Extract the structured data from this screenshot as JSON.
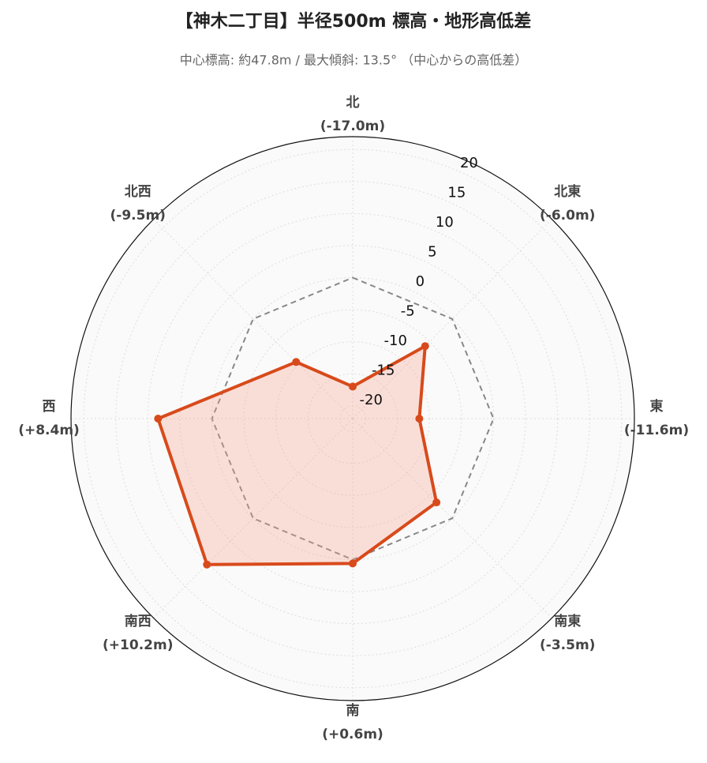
{
  "chart_data": {
    "type": "radar",
    "title": "【神木二丁目】半径500m 標高・地形高低差",
    "subtitle": "中心標高: 約47.8m / 最大傾斜: 13.5° （中心からの高低差）",
    "categories": [
      "北",
      "北東",
      "東",
      "南東",
      "南",
      "南西",
      "西",
      "北西"
    ],
    "series": [
      {
        "color": "#888888",
        "dashed": true,
        "values": [
          0,
          0,
          0,
          0,
          0,
          0,
          0,
          0
        ]
      },
      {
        "color": "#d84a1b",
        "fill": "rgba(250,160,140,0.3)",
        "values": [
          -17.0,
          -6.0,
          -11.6,
          -3.5,
          0.6,
          10.2,
          8.4,
          -9.5
        ],
        "value_labels": [
          "(-17.0m)",
          "(-6.0m)",
          "(-11.6m)",
          "(-3.5m)",
          "(+0.6m)",
          "(+10.2m)",
          "(+8.4m)",
          "(-9.5m)"
        ]
      }
    ],
    "ylim": [
      -22,
      22
    ],
    "yticks": [
      -20,
      -15,
      -10,
      -5,
      0,
      5,
      10,
      15,
      20
    ],
    "grid": true
  }
}
